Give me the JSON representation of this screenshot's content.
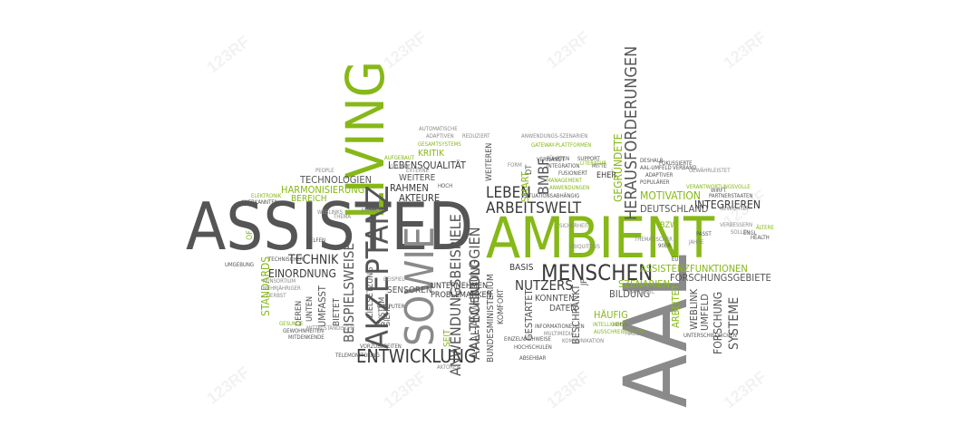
{
  "colors": {
    "gray": "#555555",
    "dark": "#3a3a3a",
    "light": "#8a8a8a",
    "green": "#86b817"
  },
  "watermark": "123RF",
  "words": {
    "assisted": "ASSISTED",
    "living": "LIVING",
    "ambient": "AMBIENT",
    "aal": "AAL",
    "sowie": "SOWIE",
    "akzeptanz": "AKZEPTANZ",
    "menschen": "MENSCHEN",
    "entwicklung": "ENTWICKLUNG",
    "herausforderungen": "HERAUSFORDERUNGEN",
    "arbeitswelt": "ARBEITSWELT",
    "leben": "LEBEN",
    "aal_technologien": "AAL-TECHNOLOGIEN",
    "anwendungsbeispiele": "ANWENDUNGSBEISPIELE",
    "nutzers": "NUTZERS",
    "technik": "TECHNIK",
    "beispielsweise": "BEISPIELSWEISE",
    "systeme": "SYSTEME",
    "integrieren": "INTEGRIEREN",
    "deutschland": "DEUTSCHLAND",
    "assistenzfunktionen": "ASSISTENZFUNKTIONEN",
    "forschungsgebiete": "FORSCHUNGSGEBIETE",
    "lebensqualitaet": "LEBENSQUALITÄT",
    "technologien": "TECHNOLOGIEN",
    "harmonisierung": "HARMONISIERUNG",
    "bereich": "BEREICH",
    "weitere": "WEITERE",
    "rahmen": "RAHMEN",
    "akteure": "AKTEURE",
    "einordnung": "EINORDNUNG",
    "motivation": "MOTIVATION",
    "standards": "STANDARDS",
    "gegruendete": "GEGRÜNDETE",
    "bmbf": "BMBF",
    "smart": "SMART",
    "kritik": "KRITIK",
    "basis": "BASIS",
    "bildung": "BILDUNG",
    "szenarien": "SZENARIEN",
    "haeufig": "HÄUFIG",
    "arbeitet": "ARBEITET",
    "weblink": "WEBLINK",
    "umfeld": "UMFELD",
    "forschung": "FORSCHUNG",
    "unternehmen": "UNTERNEHMEN",
    "problematiken": "PROBLEMATIKEN",
    "aal_anwendung": "AAL-ANWENDUNG",
    "bundesministerium": "BUNDESMINISTERIUM",
    "komfort": "KOMFORT",
    "gestartet": "GESTARTET",
    "beschraenkt": "BESCHRÄNKT",
    "konnten": "KONNTEN",
    "daten": "DATEN",
    "seit": "SEIT",
    "zielsetzung": "ZIELSETZUNG",
    "system": "SYSTEM",
    "siehe": "SIEHE",
    "sensoren": "SENSOREN",
    "bietet": "BIETET",
    "umfasst": "UMFASST",
    "unten": "UNTEN",
    "deren": "DEREN",
    "eher": "EHER",
    "bzw": "BZW",
    "jp": "JP",
    "of": "OF",
    "dt": "DT",
    "weiteren": "WEITEREN",
    "gesamtsystems": "GESAMTSYSTEMS",
    "gateway_plattformen": "GATEWAY-PLATTFORMEN",
    "anwendungs_szenarien": "ANWENDUNGS-SZENARIEN",
    "aufgebaut": "AUFGEBAUT",
    "adaptiven": "ADAPTIVEN",
    "reduziert": "REDUZIERT",
    "verband": "VERBAND",
    "aal_umfeld": "AAL-UMFELD",
    "adaptiver": "ADAPTIVER",
    "populaerer": "POPULÄRER",
    "verantwortungsvolle": "VERANTWORTUNGSVOLLE",
    "partnerstaaten": "PARTNERSTAATEN",
    "fuehrten": "FÜHRTEN",
    "support": "SUPPORT",
    "integration": "INTEGRATION",
    "fusioniert": "FUSIONIERT",
    "mitte": "MITTE",
    "management": "MANAGEMENT",
    "anwendungen": "ANWENDUNGEN",
    "literatur": "LITERATUR",
    "people": "PEOPLE",
    "elektronik": "ELEKTRONIK",
    "anerkannten": "ANERKANNTEN",
    "helfen": "HELFEN",
    "thema": "THEMA",
    "umgebung": "UMGEBUNG",
    "gesunde": "GESUNDE",
    "gewohnheiten": "GEWOHNHEITEN",
    "vorzubereiten": "VORZUBEREITEN",
    "aktoren": "AKTOREN",
    "hochschulen": "HOCHSCHULEN",
    "absehbar": "ABSEHBAR",
    "heiss": "HEISS",
    "health": "HEALTH",
    "altere": "ÄLTERE",
    "deshalb": "DESHALB",
    "gruppe": "GRUPPE",
    "hoch": "HOCH",
    "externe": "EXTERNE",
    "form": "FORM",
    "sicherheit": "SICHERHEIT",
    "beispiel": "BEISPIEL",
    "computer": "COMPUTER",
    "eu": "EU",
    "90er": "90ER",
    "jahre": "JAHRE",
    "verbessern": "VERBESSERN",
    "sollen": "SOLLEN",
    "technischer": "TECHNISCHER",
    "mittelstaendische": "MITTELSTÄNDISCHE",
    "telemonitoring": "TELEMONITORING",
    "ubiquitous": "UBIQUITOUS",
    "informationellen": "INFORMATIONELLEN",
    "kommunikation": "KOMMUNIKATION",
    "situationsabhaengig": "SITUATIONSABHÄNGIG",
    "webinks": "WEBLINKS",
    "konsortium": "KONSORTIUM",
    "herbst": "HERBST",
    "wirft": "WIRFT",
    "passt": "PASST",
    "gewichtet": "GEWICHTET",
    "thematischer": "THEMATISCHER",
    "pandemic": "PANDEMIC",
    "unterschiedlichen": "UNTERSCHIEDLICHEN",
    "einzelnachweise": "EINZELNACHWEISE",
    "mitdenkende": "MITDENKENDE",
    "anfang": "ANFANG",
    "automatische": "AUTOMATISCHE",
    "verwandt": "VERWANDT",
    "fokussierte": "FOKUSSIERTE",
    "gewaehrleistet": "GEWÄHRLEISTET",
    "auschreibungen": "AUSSCHREIBUNGEN",
    "engl": "ENGL",
    "hausbau": "HAUSBAU",
    "mehrjaehriger": "MEHRJÄHRIGER",
    "intelligente": "INTELLIGENTE",
    "multimedia": "MULTIMEDIA"
  }
}
